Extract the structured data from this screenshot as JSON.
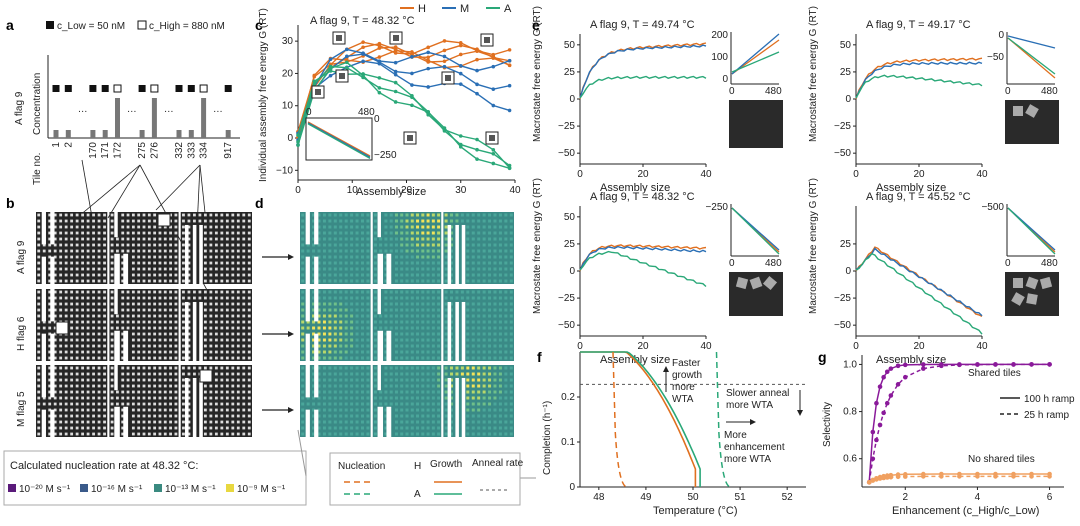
{
  "colors": {
    "H": "#e07020",
    "M": "#2a6fb5",
    "A": "#2aa878",
    "grid_dark": "#262626",
    "grid_light": "#ffffff",
    "purple": "#8a1a9a",
    "peach": "#f0a060",
    "nuc20": "#5a1a7a",
    "nuc16": "#3a5a8a",
    "nuc13": "#3a8a80",
    "nuc9": "#e8d840"
  },
  "panel_labels": {
    "a": "a",
    "b": "b",
    "c": "c",
    "d": "d",
    "e": "e",
    "f": "f",
    "g": "g"
  },
  "panel_a": {
    "legend_low": "c_Low = 50 nM",
    "legend_high": "c_High = 880 nM",
    "row_label": "A flag 9",
    "y_label": "Concentration",
    "tile_label": "Tile no.",
    "tiles": [
      "1",
      "2",
      "…",
      "170",
      "171",
      "172",
      "…",
      "275",
      "276",
      "…",
      "332",
      "333",
      "334",
      "…",
      "917"
    ],
    "dots": "…"
  },
  "panel_b": {
    "rows": [
      "A flag 9",
      "H flag 6",
      "M flag 5"
    ]
  },
  "panel_b_legend": {
    "title": "Calculated nucleation rate at 48.32 °C:",
    "items": [
      "10⁻²⁰ M s⁻¹",
      "10⁻¹⁶ M s⁻¹",
      "10⁻¹³ M s⁻¹",
      "10⁻⁹ M s⁻¹"
    ]
  },
  "legend_top": {
    "H": "H",
    "M": "M",
    "A": "A"
  },
  "panel_c": {
    "title": "A flag 9, T = 48.32 °C",
    "ylabel": "Individual assembly free energy G (RT)",
    "xlabel": "Assembly size",
    "xticks": [
      "0",
      "10",
      "20",
      "30",
      "40"
    ],
    "yticks": [
      "30",
      "20",
      "10",
      "0",
      "−10"
    ],
    "inset_xticks": [
      "0",
      "480"
    ],
    "inset_ytick": "−250",
    "inset_ytick0": "0"
  },
  "panel_e": {
    "subpanels": [
      {
        "title": "A flag 9, T = 49.74 °C",
        "yticks": [
          "50",
          "25",
          "0",
          "−25",
          "−50"
        ],
        "inset_yticks": [
          "200",
          "100",
          "0"
        ],
        "inset_xticks": [
          "0",
          "480"
        ]
      },
      {
        "title": "A flag 9, T = 49.17 °C",
        "yticks": [
          "50",
          "25",
          "0",
          "−25",
          "−50"
        ],
        "inset_yticks": [
          "0",
          "−50"
        ],
        "inset_xticks": [
          "0",
          "480"
        ]
      },
      {
        "title": "A flag 9, T = 48.32 °C",
        "yticks": [
          "50",
          "25",
          "0",
          "−25",
          "−50"
        ],
        "inset_yticks": [
          "−250"
        ],
        "inset_xticks": [
          "0",
          "480"
        ]
      },
      {
        "title": "A flag 9, T = 45.52 °C",
        "yticks": [
          "25",
          "0",
          "−25",
          "−50"
        ],
        "inset_yticks": [
          "−500"
        ],
        "inset_xticks": [
          "0",
          "480"
        ]
      }
    ],
    "ylabel": "Macrostate free energy G (RT)",
    "xlabel": "Assembly size",
    "xticks": [
      "0",
      "20",
      "40"
    ]
  },
  "panel_f": {
    "ylabel": "Completion (h⁻¹)",
    "xlabel": "Temperature (°C)",
    "xticks": [
      "48",
      "49",
      "50",
      "51",
      "52"
    ],
    "yticks": [
      "0.2",
      "0.1",
      "0"
    ],
    "ann_growth": "Faster growth more WTA",
    "ann_anneal": "Slower anneal more WTA",
    "ann_enh": "More enhancement more WTA",
    "legend": {
      "nucleation": "Nucleation",
      "growth": "Growth",
      "anneal": "Anneal rate",
      "H": "H",
      "A": "A"
    }
  },
  "panel_g": {
    "ylabel": "Selectivity",
    "xlabel": "Enhancement (c_High/c_Low)",
    "xticks": [
      "2",
      "4",
      "6"
    ],
    "yticks": [
      "1.0",
      "0.8",
      "0.6"
    ],
    "shared": "Shared tiles",
    "noshared": "No shared tiles",
    "ramp100": "100 h ramp",
    "ramp25": "25 h ramp"
  }
}
